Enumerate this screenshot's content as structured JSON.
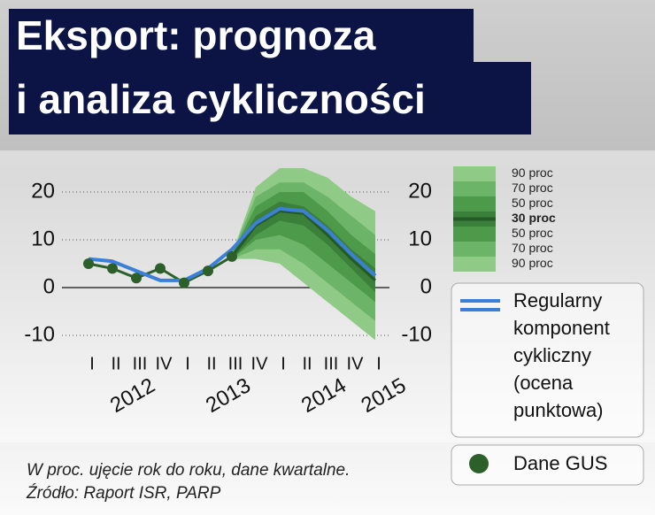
{
  "chart_data": {
    "type": "fan",
    "title_lines": [
      "Eksport: prognoza",
      "i analiza cykliczności"
    ],
    "categories": [
      "I",
      "II",
      "III",
      "IV",
      "I",
      "II",
      "III",
      "IV",
      "I",
      "II",
      "III",
      "IV",
      "I"
    ],
    "years": [
      "2012",
      "2013",
      "2014",
      "2015"
    ],
    "ylim": [
      -12,
      26
    ],
    "yticks": [
      -10,
      0,
      10,
      20
    ],
    "grid": true,
    "series": [
      {
        "name": "Regularny komponent cykliczny (ocena punktowa)",
        "color": "#3b7fd9",
        "values": [
          6,
          5.5,
          3.5,
          1.5,
          1.5,
          4,
          8,
          13.5,
          16.5,
          16,
          12,
          7,
          2.5
        ]
      },
      {
        "name": "Dane GUS",
        "color": "#2d5f2a",
        "values": [
          5,
          4,
          2,
          4,
          1,
          3.5,
          6.5,
          null,
          null,
          null,
          null,
          null,
          null
        ]
      }
    ],
    "fan": {
      "center": [
        null,
        null,
        null,
        null,
        null,
        null,
        6.5,
        13,
        16,
        15.5,
        11,
        6,
        1.5
      ],
      "center_color": "#245a26",
      "bands": [
        {
          "name": "90 proc",
          "color": "#8fcb86",
          "upper": [
            null,
            null,
            null,
            null,
            null,
            null,
            7,
            21,
            25,
            25,
            23,
            19,
            16
          ],
          "lower": [
            null,
            null,
            null,
            null,
            null,
            null,
            6,
            6,
            5,
            1,
            -3,
            -7,
            -11
          ]
        },
        {
          "name": "70 proc",
          "color": "#6cb468",
          "upper": [
            null,
            null,
            null,
            null,
            null,
            null,
            7,
            19,
            22,
            22,
            19,
            15,
            11
          ],
          "lower": [
            null,
            null,
            null,
            null,
            null,
            null,
            6,
            8,
            8,
            5,
            1,
            -3,
            -7
          ]
        },
        {
          "name": "50 proc",
          "color": "#4e9a4b",
          "upper": [
            null,
            null,
            null,
            null,
            null,
            null,
            7,
            17,
            20,
            20,
            16,
            11,
            7
          ],
          "lower": [
            null,
            null,
            null,
            null,
            null,
            null,
            6,
            10,
            11,
            9,
            5,
            1,
            -3
          ]
        },
        {
          "name": "30 proc",
          "color": "#3a7f3a",
          "upper": [
            null,
            null,
            null,
            null,
            null,
            null,
            7,
            15,
            18,
            17,
            13,
            8,
            4
          ],
          "lower": [
            null,
            null,
            null,
            null,
            null,
            null,
            6,
            11,
            14,
            13,
            9,
            4,
            -1
          ]
        }
      ]
    },
    "notes": [
      "W proc. ujęcie rok do roku, dane kwartalne.",
      "Źródło: Raport ISR, PARP"
    ]
  }
}
